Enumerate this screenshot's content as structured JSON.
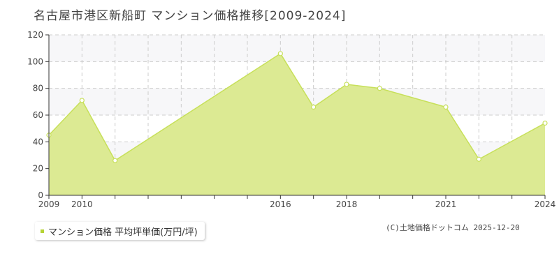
{
  "title": "名古屋市港区新船町 マンション価格推移[2009-2024]",
  "legend": {
    "label": "マンション価格 平均坪単価(万円/坪)"
  },
  "credit": "(C)土地価格ドットコム 2025-12-20",
  "colors": {
    "fill": "#dcea93",
    "line": "#c7e05a",
    "accent": "#b5d334",
    "band": "#f7f7f9",
    "grid": "#cccccc"
  },
  "chart_data": {
    "type": "area",
    "title": "名古屋市港区新船町 マンション価格推移[2009-2024]",
    "xlabel": "",
    "ylabel": "",
    "xlim": [
      2009,
      2024
    ],
    "ylim": [
      0,
      120
    ],
    "yticks": [
      0,
      20,
      40,
      60,
      80,
      100,
      120
    ],
    "xtick_labels": [
      "2009",
      "2010",
      "2016",
      "2018",
      "2021",
      "2024"
    ],
    "series": [
      {
        "name": "マンション価格 平均坪単価(万円/坪)",
        "points": [
          {
            "x": 2009,
            "y": 45
          },
          {
            "x": 2010,
            "y": 71
          },
          {
            "x": 2011,
            "y": 26
          },
          {
            "x": 2016,
            "y": 106
          },
          {
            "x": 2017,
            "y": 66
          },
          {
            "x": 2018,
            "y": 83
          },
          {
            "x": 2019,
            "y": 80
          },
          {
            "x": 2021,
            "y": 66
          },
          {
            "x": 2022,
            "y": 27
          },
          {
            "x": 2024,
            "y": 54
          }
        ]
      }
    ],
    "grid": true
  }
}
